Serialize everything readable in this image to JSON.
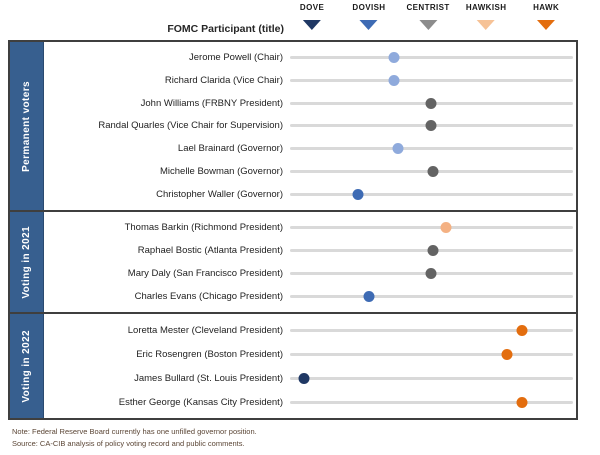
{
  "header": {
    "participant_column_label": "FOMC Participant (title)",
    "categories": [
      {
        "label": "DOVE",
        "color": "#1f3864",
        "pct": 7.8
      },
      {
        "label": "DOVISH",
        "color": "#3e6bb4",
        "pct": 27.9
      },
      {
        "label": "CENTRIST",
        "color": "#8c8c8c",
        "pct": 48.8
      },
      {
        "label": "HAWKISH",
        "color": "#f6c296",
        "pct": 69.3
      },
      {
        "label": "HAWK",
        "color": "#e36d0e",
        "pct": 90.5
      }
    ]
  },
  "colors": {
    "dove": "#1f3864",
    "dovish": "#3e6bb4",
    "dovish_lean": "#8faadc",
    "centrist": "#636363",
    "hawkish": "#f4b183",
    "hawk": "#e36d0e",
    "track": "#d9d9d9",
    "sidebar": "#375f8f",
    "border": "#3f3f3f",
    "note_text": "#5b4636"
  },
  "sections": [
    {
      "label": "Permanent voters",
      "rows": [
        {
          "name": "Jerome Powell (Chair)",
          "stance": "dovish_lean",
          "pct": 36.7
        },
        {
          "name": "Richard Clarida (Vice Chair)",
          "stance": "dovish_lean",
          "pct": 36.7
        },
        {
          "name": "John Williams (FRBNY President)",
          "stance": "centrist",
          "pct": 49.8
        },
        {
          "name": "Randal Quarles (Vice Chair for Supervision)",
          "stance": "centrist",
          "pct": 49.8
        },
        {
          "name": "Lael Brainard (Governor)",
          "stance": "dovish_lean",
          "pct": 38.2
        },
        {
          "name": "Michelle Bowman (Governor)",
          "stance": "centrist",
          "pct": 50.5
        },
        {
          "name": "Christopher Waller (Governor)",
          "stance": "dovish",
          "pct": 24.0
        }
      ]
    },
    {
      "label": "Voting in 2021",
      "rows": [
        {
          "name": "Thomas Barkin (Richmond President)",
          "stance": "hawkish",
          "pct": 55.1
        },
        {
          "name": "Raphael Bostic (Atlanta President)",
          "stance": "centrist",
          "pct": 50.5
        },
        {
          "name": "Mary Daly (San Francisco President)",
          "stance": "centrist",
          "pct": 49.8
        },
        {
          "name": "Charles Evans (Chicago President)",
          "stance": "dovish",
          "pct": 27.9
        }
      ]
    },
    {
      "label": "Voting in 2022",
      "rows": [
        {
          "name": "Loretta Mester (Cleveland President)",
          "stance": "hawk",
          "pct": 82.0
        },
        {
          "name": "Eric Rosengren (Boston President)",
          "stance": "hawk",
          "pct": 76.7
        },
        {
          "name": "James Bullard (St. Louis President)",
          "stance": "dove",
          "pct": 4.9
        },
        {
          "name": "Esther George (Kansas City President)",
          "stance": "hawk",
          "pct": 82.0
        }
      ]
    }
  ],
  "footer": {
    "note": "Note: Federal Reserve Board currently has one unfilled  governor position.",
    "source": "Source: CA-CIB analysis of policy voting record and public comments."
  },
  "chart_data": {
    "type": "scatter",
    "title": "",
    "x_scale": {
      "labels": [
        "DOVE",
        "DOVISH",
        "CENTRIST",
        "HAWKISH",
        "HAWK"
      ],
      "values": [
        1,
        2,
        3,
        4,
        5
      ]
    },
    "legend_position": "top",
    "series": [
      {
        "name": "Permanent voters",
        "points": [
          {
            "participant": "Jerome Powell (Chair)",
            "value": 2.4,
            "stance": "dovish_lean"
          },
          {
            "participant": "Richard Clarida (Vice Chair)",
            "value": 2.4,
            "stance": "dovish_lean"
          },
          {
            "participant": "John Williams (FRBNY President)",
            "value": 3.03,
            "stance": "centrist"
          },
          {
            "participant": "Randal Quarles (Vice Chair for Supervision)",
            "value": 3.03,
            "stance": "centrist"
          },
          {
            "participant": "Lael Brainard (Governor)",
            "value": 2.47,
            "stance": "dovish_lean"
          },
          {
            "participant": "Michelle Bowman (Governor)",
            "value": 3.07,
            "stance": "centrist"
          },
          {
            "participant": "Christopher Waller (Governor)",
            "value": 1.79,
            "stance": "dovish"
          }
        ]
      },
      {
        "name": "Voting in 2021",
        "points": [
          {
            "participant": "Thomas Barkin (Richmond President)",
            "value": 3.29,
            "stance": "hawkish"
          },
          {
            "participant": "Raphael Bostic (Atlanta President)",
            "value": 3.07,
            "stance": "centrist"
          },
          {
            "participant": "Mary Daly (San Francisco President)",
            "value": 3.03,
            "stance": "centrist"
          },
          {
            "participant": "Charles Evans (Chicago President)",
            "value": 1.97,
            "stance": "dovish"
          }
        ]
      },
      {
        "name": "Voting in 2022",
        "points": [
          {
            "participant": "Loretta Mester (Cleveland President)",
            "value": 4.59,
            "stance": "hawk"
          },
          {
            "participant": "Eric Rosengren (Boston President)",
            "value": 4.33,
            "stance": "hawk"
          },
          {
            "participant": "James Bullard (St. Louis President)",
            "value": 0.86,
            "stance": "dove"
          },
          {
            "participant": "Esther George (Kansas City President)",
            "value": 4.59,
            "stance": "hawk"
          }
        ]
      }
    ]
  }
}
